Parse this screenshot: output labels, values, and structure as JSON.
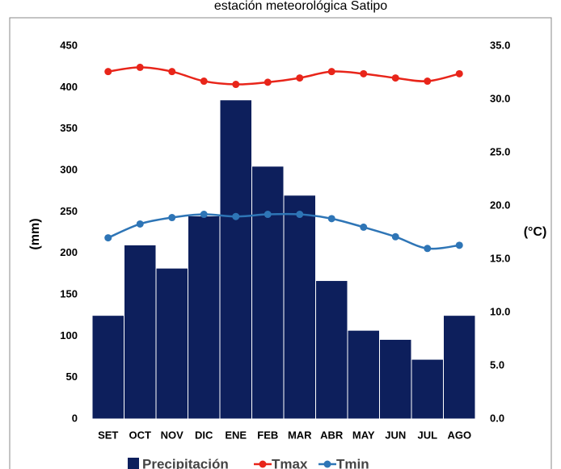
{
  "chart_data": {
    "type": "bar-line",
    "title": "estación meteorológica Satipo",
    "ylabel": "(mm)",
    "y2label": "(°C)",
    "categories": [
      "SET",
      "OCT",
      "NOV",
      "DIC",
      "ENE",
      "FEB",
      "MAR",
      "ABR",
      "MAY",
      "JUN",
      "JUL",
      "AGO"
    ],
    "series": [
      {
        "name": "Precipitación",
        "type": "bar",
        "color": "#0d1f5c",
        "values": [
          125,
          210,
          182,
          245,
          385,
          305,
          270,
          167,
          107,
          96,
          72,
          125
        ]
      },
      {
        "name": "Tmax",
        "type": "line",
        "axis": "y2",
        "color": "#e8251a",
        "values": [
          32.6,
          33.0,
          32.6,
          31.7,
          31.4,
          31.6,
          32.0,
          32.6,
          32.4,
          32.0,
          31.7,
          32.4
        ]
      },
      {
        "name": "Tmin",
        "type": "line",
        "axis": "y2",
        "color": "#2e75b6",
        "values": [
          17.0,
          18.3,
          18.9,
          19.2,
          19.0,
          19.2,
          19.2,
          18.8,
          18.0,
          17.1,
          16.0,
          16.3
        ]
      }
    ],
    "ylim": [
      0,
      450
    ],
    "yticks": [
      0,
      50,
      100,
      150,
      200,
      250,
      300,
      350,
      400,
      450
    ],
    "y2lim": [
      0,
      35
    ],
    "y2ticks": [
      {
        "value": 0,
        "label": "0.0"
      },
      {
        "value": 5,
        "label": "5.0"
      },
      {
        "value": 10,
        "label": "10.0"
      },
      {
        "value": 15,
        "label": "15.0"
      },
      {
        "value": 20,
        "label": "20.0"
      },
      {
        "value": 25,
        "label": "25.0"
      },
      {
        "value": 30,
        "label": "30.0"
      },
      {
        "value": 35,
        "label": "35.0"
      }
    ],
    "legend": "bottom"
  }
}
